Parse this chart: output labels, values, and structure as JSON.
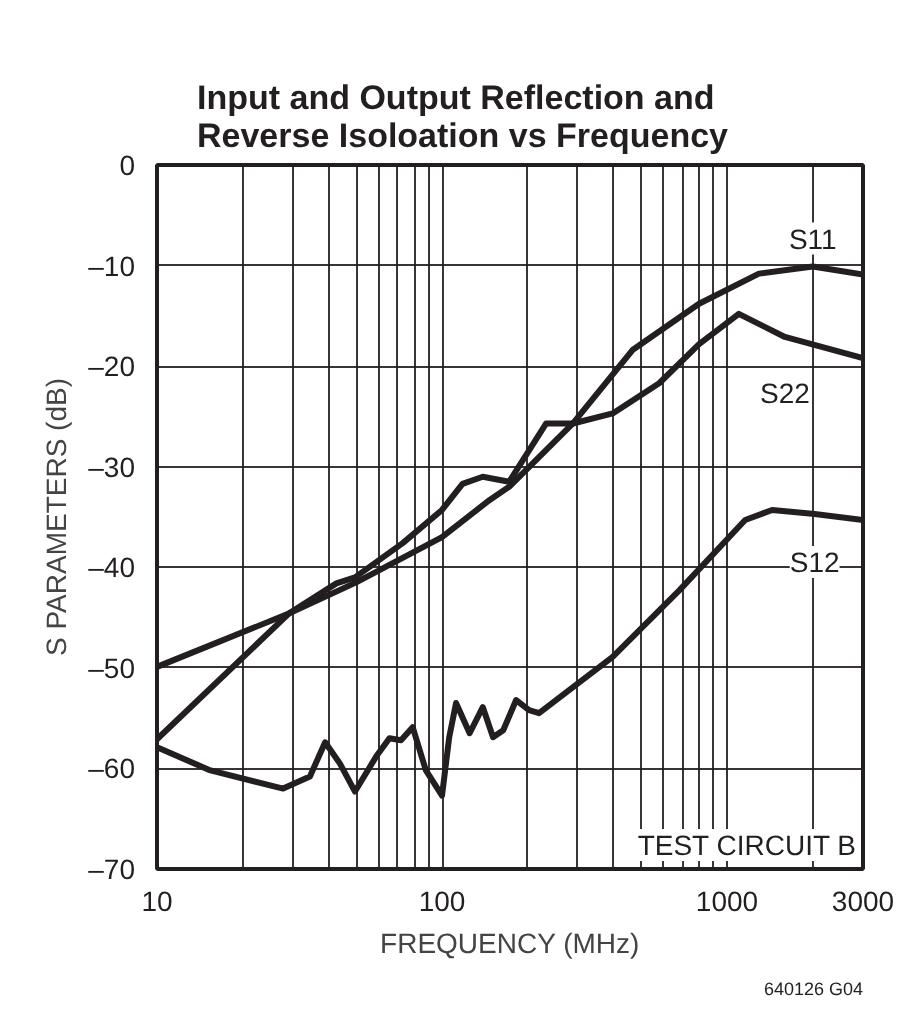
{
  "chart_data": {
    "type": "line",
    "title": "Input and Output Reflection and\nReverse Isoloation vs Frequency",
    "xlabel": "FREQUENCY (MHz)",
    "ylabel": "S PARAMETERS (dB)",
    "log": "x",
    "grid": true,
    "marker": "none",
    "line_style": "solid",
    "legend": false,
    "xlim": [
      10,
      3000
    ],
    "ylim": [
      -70,
      0
    ],
    "xticks": [
      10,
      {
        "value": 20,
        "label": null
      },
      {
        "value": 30,
        "label": null
      },
      {
        "value": 40,
        "label": null
      },
      {
        "value": 50,
        "label": null
      },
      {
        "value": 60,
        "label": null
      },
      {
        "value": 70,
        "label": null
      },
      {
        "value": 80,
        "label": null
      },
      {
        "value": 90,
        "label": null
      },
      100,
      {
        "value": 200,
        "label": null
      },
      {
        "value": 300,
        "label": null
      },
      {
        "value": 400,
        "label": null
      },
      {
        "value": 500,
        "label": null
      },
      {
        "value": 600,
        "label": null
      },
      {
        "value": 700,
        "label": null
      },
      {
        "value": 800,
        "label": null
      },
      {
        "value": 900,
        "label": null
      },
      1000,
      {
        "value": 2000,
        "label": null
      },
      3000
    ],
    "yticks": [
      0,
      {
        "value": -10,
        "label": "–10"
      },
      {
        "value": -20,
        "label": "–20"
      },
      {
        "value": -30,
        "label": "–30"
      },
      {
        "value": -40,
        "label": "–40"
      },
      {
        "value": -50,
        "label": "–50"
      },
      {
        "value": -60,
        "label": "–60"
      },
      {
        "value": -70,
        "label": "–70"
      }
    ],
    "series": [
      {
        "name": "S11",
        "color": "#231f20",
        "x": [
          10,
          29,
          50,
          100,
          147,
          172,
          288,
          466,
          798,
          1294,
          2000,
          3000
        ],
        "values": [
          -49.9,
          -44.6,
          -41.5,
          -37,
          -33.3,
          -32,
          -25.7,
          -18.4,
          -13.8,
          -10.8,
          -10.1,
          -10.9
        ]
      },
      {
        "name": "S22",
        "color": "#231f20",
        "x": [
          10,
          29,
          42.6,
          49.5,
          72.8,
          100,
          118,
          139,
          172,
          232,
          288,
          397,
          578,
          798,
          1100,
          1596,
          3000
        ],
        "values": [
          -57.1,
          -44.6,
          -41.6,
          -41,
          -37.6,
          -34.3,
          -31.7,
          -31,
          -31.5,
          -25.7,
          -25.7,
          -24.7,
          -21.7,
          -17.8,
          -14.8,
          -17.1,
          -19.2
        ]
      },
      {
        "name": "S12",
        "color": "#231f20",
        "x": [
          10,
          15.4,
          27.7,
          34.4,
          38.9,
          43.8,
          49.5,
          58.8,
          65.4,
          71.8,
          78.9,
          87.8,
          100,
          106,
          112,
          125,
          139,
          151,
          164,
          182,
          202,
          219,
          397,
          680,
          1158,
          1440,
          2030,
          3000
        ],
        "values": [
          -57.9,
          -60.2,
          -62,
          -60.8,
          -57.4,
          -59.5,
          -62.3,
          -58.8,
          -57,
          -57.2,
          -55.9,
          -60.2,
          -62.7,
          -56.9,
          -53.5,
          -56.5,
          -53.9,
          -56.9,
          -56.2,
          -53.2,
          -54.2,
          -54.5,
          -48.9,
          -42.3,
          -35.3,
          -34.3,
          -34.7,
          -35.3
        ]
      }
    ],
    "annotations": [
      "TEST CIRCUIT B",
      "640126 G04"
    ]
  }
}
